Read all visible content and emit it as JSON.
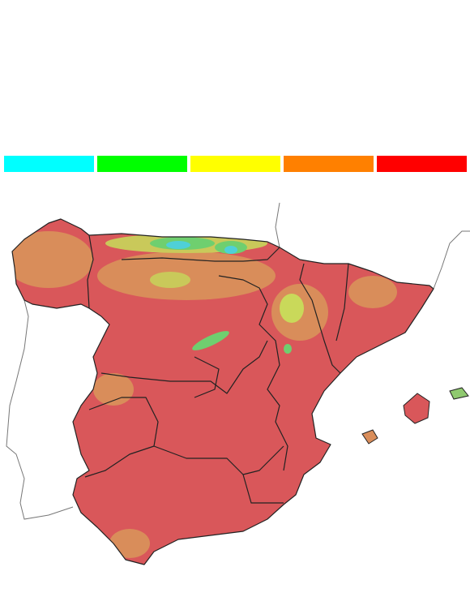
{
  "legend": {
    "colors": [
      "#00ffff",
      "#00ff00",
      "#ffff00",
      "#ff8000",
      "#ff0000"
    ]
  }
}
